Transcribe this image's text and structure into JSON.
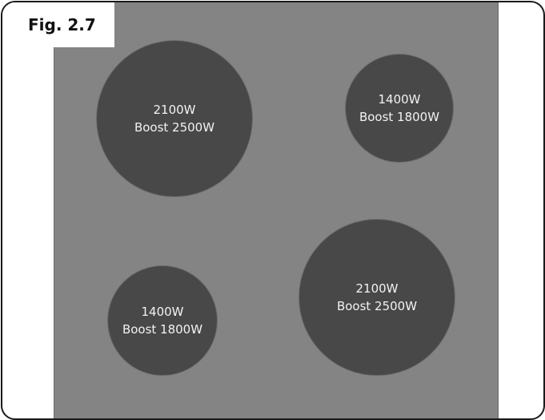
{
  "figure": {
    "label": "Fig. 2.7"
  },
  "zones": [
    {
      "power": "2100W",
      "boost": "Boost 2500W"
    },
    {
      "power": "1400W",
      "boost": "Boost 1800W"
    },
    {
      "power": "1400W",
      "boost": "Boost 1800W"
    },
    {
      "power": "2100W",
      "boost": "Boost 2500W"
    }
  ],
  "colors": {
    "hob_surface": "#848484",
    "cooking_zone": "#484848",
    "zone_text": "#f2f2f2",
    "frame_border": "#1a1a1a"
  }
}
